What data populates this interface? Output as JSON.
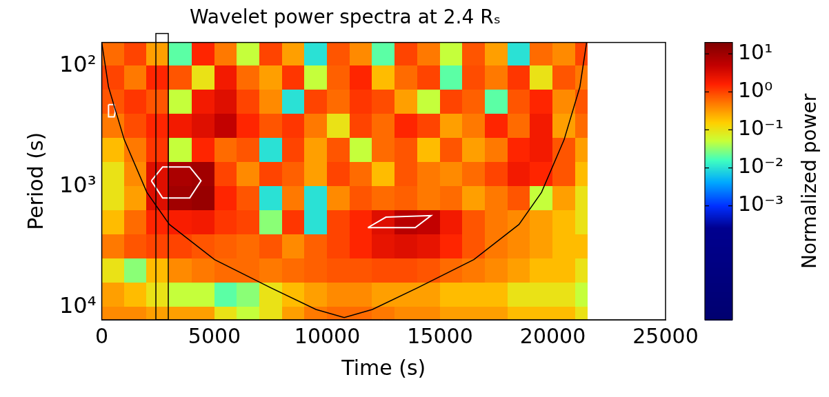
{
  "chart_data": {
    "type": "heatmap",
    "title": "Wavelet power spectra at 2.4 Rₛ",
    "x_label": "Time (s)",
    "y_label": "Period (s)",
    "xlim": [
      0,
      25000
    ],
    "xticks": [
      0,
      5000,
      10000,
      15000,
      20000,
      25000
    ],
    "ylim": [
      64,
      12800
    ],
    "yticks": [
      {
        "value": 100,
        "label": "10²"
      },
      {
        "value": 1000,
        "label": "10³"
      },
      {
        "value": 10000,
        "label": "10⁴"
      }
    ],
    "log": "y",
    "grid": false,
    "time_edges": [
      0,
      1000,
      2000,
      3000,
      4000,
      5000,
      6000,
      7000,
      8000,
      9000,
      10000,
      11000,
      12000,
      13000,
      14000,
      15000,
      16000,
      17000,
      18000,
      19000,
      20000,
      21000,
      21500
    ],
    "period_edges": [
      63,
      100,
      158,
      251,
      398,
      631,
      1000,
      1585,
      2512,
      3981,
      6310,
      10000,
      15849
    ],
    "power": [
      [
        0.6,
        1,
        0.3,
        0.02,
        1.5,
        0.5,
        0.05,
        1,
        0.3,
        0.01,
        0.8,
        0.4,
        0.02,
        1,
        0.5,
        0.05,
        0.8,
        0.3,
        0.01,
        0.6,
        0.4,
        1
      ],
      [
        1,
        0.5,
        1.5,
        0.8,
        0.1,
        2,
        0.6,
        0.3,
        1.2,
        0.05,
        0.7,
        1.5,
        0.2,
        0.6,
        1,
        0.02,
        0.9,
        0.5,
        1.2,
        0.1,
        0.8,
        0.5
      ],
      [
        0.8,
        1.2,
        0.8,
        0.05,
        2,
        3,
        1,
        0.4,
        0.01,
        1,
        0.6,
        1.2,
        0.9,
        0.3,
        0.05,
        1,
        0.7,
        0.02,
        0.8,
        1.5,
        0.4,
        0.8
      ],
      [
        0.5,
        0.9,
        1.5,
        2,
        3,
        5,
        1.5,
        0.8,
        1.2,
        0.5,
        0.1,
        1,
        0.6,
        1.5,
        1,
        0.3,
        0.5,
        1.5,
        0.6,
        2,
        0.3,
        0.6
      ],
      [
        0.2,
        0.5,
        1.2,
        0.05,
        1.5,
        0.6,
        0.8,
        0.01,
        1,
        0.3,
        0.8,
        0.05,
        0.6,
        0.8,
        0.2,
        0.8,
        0.3,
        0.5,
        1.5,
        2,
        0.8,
        0.3
      ],
      [
        0.1,
        0.4,
        3,
        8,
        10,
        1,
        0.4,
        1,
        0.7,
        0.3,
        1,
        0.6,
        0.2,
        0.8,
        0.5,
        0.4,
        0.6,
        1,
        2,
        1.5,
        0.8,
        0.2
      ],
      [
        0.1,
        0.3,
        3,
        10,
        12,
        1.5,
        0.8,
        0.01,
        0.5,
        0.01,
        0.4,
        0.8,
        0.6,
        0.7,
        0.5,
        0.6,
        0.3,
        0.5,
        0.8,
        0.05,
        0.3,
        0.1
      ],
      [
        0.2,
        0.6,
        1.5,
        1.8,
        2,
        1.2,
        1,
        0.03,
        1.2,
        0.01,
        1,
        1.5,
        3,
        6,
        5,
        2,
        0.8,
        0.5,
        0.4,
        0.3,
        0.2,
        0.1
      ],
      [
        0.5,
        0.8,
        1,
        1,
        0.8,
        0.7,
        0.6,
        0.8,
        0.4,
        0.7,
        1,
        1.5,
        2.5,
        3,
        2.5,
        1.5,
        0.8,
        0.5,
        0.4,
        0.3,
        0.2,
        0.2
      ],
      [
        0.1,
        0.03,
        0.2,
        0.4,
        0.5,
        0.6,
        0.6,
        0.5,
        0.6,
        0.7,
        0.8,
        0.8,
        0.9,
        0.9,
        0.8,
        0.6,
        0.5,
        0.4,
        0.3,
        0.2,
        0.2,
        0.1
      ],
      [
        0.3,
        0.2,
        0.1,
        0.05,
        0.05,
        0.02,
        0.03,
        0.1,
        0.2,
        0.3,
        0.4,
        0.4,
        0.3,
        0.3,
        0.3,
        0.2,
        0.2,
        0.2,
        0.1,
        0.1,
        0.1,
        0.05
      ],
      [
        0.4,
        0.4,
        0.3,
        0.3,
        0.3,
        0.1,
        0.05,
        0.1,
        0.3,
        0.5,
        0.6,
        0.6,
        0.5,
        0.4,
        0.4,
        0.3,
        0.3,
        0.3,
        0.2,
        0.2,
        0.2,
        0.1
      ]
    ],
    "colorbar": {
      "label": "Normalized power",
      "range": [
        1e-06,
        20
      ],
      "ticks": [
        {
          "value": 10,
          "label": "10¹"
        },
        {
          "value": 1,
          "label": "10⁰"
        },
        {
          "value": 0.1,
          "label": "10⁻¹"
        },
        {
          "value": 0.01,
          "label": "10⁻²"
        },
        {
          "value": 0.001,
          "label": "10⁻³"
        }
      ]
    },
    "cone_of_influence": {
      "x": [
        0,
        300,
        1000,
        2000,
        3000,
        5000,
        7500,
        9500,
        10750,
        12000,
        14000,
        16500,
        18500,
        19500,
        20500,
        21200,
        21500
      ],
      "y": [
        64,
        150,
        411,
        1122,
        2070,
        4055,
        6950,
        10500,
        12250,
        10500,
        6950,
        4055,
        2070,
        1122,
        411,
        150,
        64
      ]
    },
    "significance_contours": [
      {
        "x": [
          2200,
          2700,
          3900,
          4400,
          3900,
          2700
        ],
        "y": [
          900,
          690,
          690,
          900,
          1250,
          1250
        ]
      },
      {
        "x": [
          11800,
          12600,
          14600,
          13900
        ],
        "y": [
          2200,
          1800,
          1750,
          2200
        ]
      },
      {
        "x": [
          300,
          550,
          600,
          550,
          300
        ],
        "y": [
          210,
          210,
          240,
          265,
          265
        ]
      }
    ],
    "highlight_window": [
      2400,
      2950
    ]
  }
}
